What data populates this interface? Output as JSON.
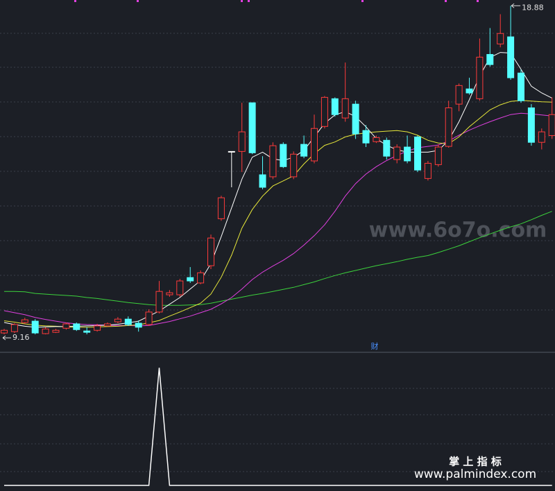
{
  "chart_data": [
    {
      "type": "candlestick",
      "high_label": 18.88,
      "low_label": 9.16,
      "marker": "财",
      "up_color": "#ff3b3b",
      "down_color": "#54ffff",
      "flat_color": "#ffffff",
      "ylim": [
        8.69,
        19.05
      ],
      "open": [
        9.2,
        9.24,
        9.51,
        9.55,
        9.18,
        9.22,
        9.34,
        9.47,
        9.26,
        9.28,
        9.41,
        9.53,
        9.61,
        9.49,
        9.45,
        9.82,
        10.33,
        10.33,
        10.84,
        10.68,
        11.19,
        12.58,
        14.57,
        14.57,
        16.01,
        13.88,
        13.82,
        14.78,
        13.82,
        14.78,
        14.29,
        15.31,
        16.13,
        15.56,
        15.97,
        15.19,
        14.86,
        14.9,
        14.33,
        14.7,
        15.0,
        13.77,
        14.18,
        14.72,
        15.97,
        16.42,
        16.13,
        17.44,
        17.75,
        17.96,
        16.89,
        15.86,
        14.84,
        15.04
      ],
      "high": [
        9.32,
        9.49,
        9.65,
        9.61,
        9.37,
        9.32,
        9.51,
        9.51,
        9.37,
        9.47,
        9.51,
        9.67,
        9.69,
        9.57,
        9.9,
        10.74,
        10.47,
        10.8,
        11.15,
        11.05,
        12.11,
        13.26,
        14.57,
        16.01,
        16.01,
        14.43,
        14.84,
        14.84,
        14.57,
        15.04,
        15.66,
        16.21,
        16.17,
        17.2,
        16.07,
        15.35,
        15.04,
        14.98,
        14.78,
        15.04,
        15.04,
        14.29,
        14.78,
        16.07,
        16.58,
        16.75,
        17.91,
        18.22,
        18.63,
        18.88,
        16.99,
        15.97,
        15.25,
        16.17
      ],
      "low": [
        9.16,
        9.2,
        9.47,
        9.16,
        9.16,
        9.2,
        9.3,
        9.26,
        9.16,
        9.24,
        9.39,
        9.49,
        9.41,
        9.24,
        9.41,
        9.78,
        10.27,
        10.27,
        10.68,
        10.64,
        11.09,
        12.52,
        13.51,
        13.96,
        14.49,
        13.45,
        13.75,
        14.08,
        13.75,
        14.37,
        14.22,
        15.25,
        15.6,
        15.45,
        14.94,
        14.7,
        14.82,
        14.33,
        14.22,
        14.22,
        13.96,
        13.71,
        14.12,
        14.68,
        15.76,
        16.25,
        16.07,
        17.08,
        17.65,
        16.69,
        16.01,
        14.74,
        14.63,
        14.94
      ],
      "close": [
        9.28,
        9.45,
        9.59,
        9.2,
        9.32,
        9.28,
        9.47,
        9.3,
        9.22,
        9.41,
        9.47,
        9.61,
        9.45,
        9.37,
        9.82,
        10.43,
        10.39,
        10.74,
        10.74,
        10.98,
        12.01,
        13.2,
        14.57,
        15.15,
        14.53,
        13.51,
        14.74,
        14.12,
        14.49,
        14.43,
        15.25,
        16.17,
        15.66,
        16.13,
        15.09,
        14.82,
        14.98,
        14.43,
        14.7,
        14.29,
        14.02,
        14.22,
        14.7,
        15.86,
        16.52,
        16.3,
        17.36,
        17.14,
        18.06,
        16.75,
        16.07,
        14.84,
        15.15,
        15.66
      ],
      "series": [
        {
          "color": "#3cd23c",
          "values": [
            10.43,
            10.43,
            10.42,
            10.37,
            10.35,
            10.33,
            10.31,
            10.29,
            10.25,
            10.22,
            10.18,
            10.14,
            10.1,
            10.07,
            10.04,
            10.02,
            10.02,
            10.02,
            10.03,
            10.04,
            10.08,
            10.14,
            10.2,
            10.26,
            10.32,
            10.37,
            10.43,
            10.49,
            10.55,
            10.63,
            10.71,
            10.81,
            10.9,
            10.98,
            11.05,
            11.12,
            11.19,
            11.25,
            11.31,
            11.38,
            11.44,
            11.49,
            11.58,
            11.68,
            11.78,
            11.9,
            12.02,
            12.13,
            12.24,
            12.34,
            12.43,
            12.55,
            12.68,
            12.8
          ]
        },
        {
          "color": "#e040e0",
          "values": [
            9.86,
            9.8,
            9.74,
            9.66,
            9.6,
            9.55,
            9.5,
            9.47,
            9.45,
            9.44,
            9.43,
            9.42,
            9.42,
            9.41,
            9.42,
            9.48,
            9.54,
            9.62,
            9.7,
            9.8,
            9.9,
            10.06,
            10.25,
            10.5,
            10.78,
            11.0,
            11.18,
            11.35,
            11.55,
            11.8,
            12.08,
            12.4,
            12.8,
            13.25,
            13.62,
            13.9,
            14.12,
            14.3,
            14.45,
            14.58,
            14.68,
            14.72,
            14.76,
            14.88,
            15.05,
            15.2,
            15.33,
            15.45,
            15.56,
            15.66,
            15.7,
            15.68,
            15.65,
            15.62
          ]
        },
        {
          "color": "#e8e83a",
          "values": [
            9.56,
            9.52,
            9.47,
            9.43,
            9.41,
            9.4,
            9.38,
            9.37,
            9.37,
            9.38,
            9.39,
            9.4,
            9.42,
            9.44,
            9.5,
            9.57,
            9.7,
            9.82,
            9.95,
            10.08,
            10.35,
            10.85,
            11.5,
            12.3,
            12.85,
            13.25,
            13.55,
            13.7,
            13.85,
            14.2,
            14.5,
            14.75,
            14.85,
            15.0,
            15.08,
            15.12,
            15.15,
            15.17,
            15.19,
            15.15,
            15.05,
            14.9,
            14.82,
            14.8,
            15.0,
            15.3,
            15.55,
            15.8,
            15.95,
            16.05,
            16.08,
            16.06,
            16.04,
            16.03
          ]
        },
        {
          "color": "#ffffff",
          "values": [
            9.51,
            9.45,
            9.4,
            9.37,
            9.38,
            9.39,
            9.39,
            9.4,
            9.41,
            9.42,
            9.43,
            9.46,
            9.5,
            9.55,
            9.7,
            9.85,
            10.05,
            10.25,
            10.5,
            10.75,
            11.25,
            12.05,
            12.9,
            13.75,
            14.4,
            14.55,
            14.35,
            14.3,
            14.4,
            14.6,
            15.0,
            15.4,
            15.65,
            15.75,
            15.6,
            15.3,
            14.95,
            14.75,
            14.62,
            14.55,
            14.55,
            14.55,
            14.6,
            14.9,
            15.45,
            16.1,
            16.8,
            17.35,
            17.5,
            17.48,
            17.0,
            16.5,
            16.3,
            16.15
          ]
        }
      ]
    },
    {
      "type": "line",
      "color": "#ffffff",
      "ylim": [
        -0.03,
        1.12
      ],
      "values": [
        0,
        0,
        0,
        0,
        0,
        0,
        0,
        0,
        0,
        0,
        0,
        0,
        0,
        0,
        0,
        1,
        0,
        0,
        0,
        0,
        0,
        0,
        0,
        0,
        0,
        0,
        0,
        0,
        0,
        0,
        0,
        0,
        0,
        0,
        0,
        0,
        0,
        0,
        0,
        0,
        0,
        0,
        0,
        0,
        0,
        0,
        0,
        0,
        0,
        0,
        0,
        0,
        0,
        0
      ]
    }
  ],
  "watermark": "www.6o7o.com",
  "brand": {
    "title": "掌 上 指 标",
    "url": "www.palmindex.com"
  }
}
